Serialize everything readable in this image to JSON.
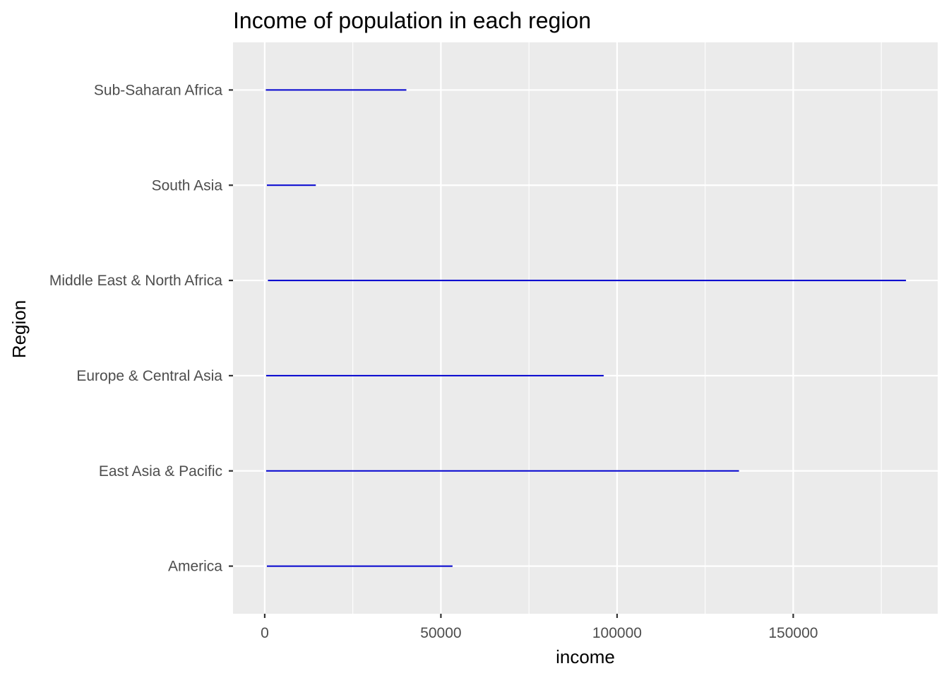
{
  "chart_data": {
    "type": "range",
    "title": "Income of population in each region",
    "xlabel": "income",
    "ylabel": "Region",
    "xlim": [
      -9000,
      191000
    ],
    "x_ticks": [
      0,
      50000,
      100000,
      150000
    ],
    "x_tick_labels": [
      "0",
      "50000",
      "100000",
      "150000"
    ],
    "x_minor_ticks": [
      25000,
      75000,
      125000,
      175000
    ],
    "categories": [
      "America",
      "East Asia & Pacific",
      "Europe & Central Asia",
      "Middle East & North Africa",
      "South Asia",
      "Sub-Saharan Africa"
    ],
    "series": [
      {
        "color": "#0000cd",
        "min": [
          600,
          400,
          400,
          900,
          600,
          300
        ],
        "max": [
          53300,
          134600,
          96200,
          182000,
          14500,
          40200
        ]
      }
    ],
    "panel_background": "#ebebeb",
    "grid": true,
    "legend": "none"
  }
}
